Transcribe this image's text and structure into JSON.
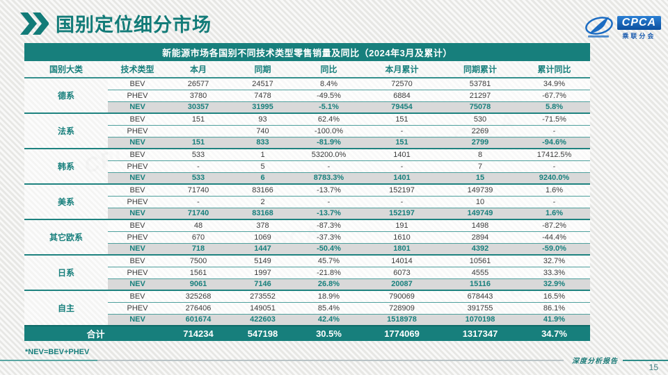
{
  "page": {
    "title": "国别定位细分市场",
    "footnote": "*NEV=BEV+PHEV",
    "footer_right": "深度分析报告",
    "page_number": "15"
  },
  "logo": {
    "text": "CPCA",
    "subtext": "乘联分会"
  },
  "watermark_text": "CPCA",
  "colors": {
    "accent_teal": "#177f7c",
    "nev_row_bg": "#d9d9d9",
    "total_row_bg": "#177f7c",
    "logo_blue": "#0c4f9e"
  },
  "table": {
    "title": "新能源市场各国别不同技术类型零售销量及同比（2024年3月及累计）",
    "columns": [
      "国别大类",
      "技术类型",
      "本月",
      "同期",
      "同比",
      "本月累计",
      "同期累计",
      "累计同比"
    ],
    "groups": [
      {
        "name": "德系",
        "rows": [
          [
            "BEV",
            "26577",
            "24517",
            "8.4%",
            "72570",
            "53781",
            "34.9%"
          ],
          [
            "PHEV",
            "3780",
            "7478",
            "-49.5%",
            "6884",
            "21297",
            "-67.7%"
          ],
          [
            "NEV",
            "30357",
            "31995",
            "-5.1%",
            "79454",
            "75078",
            "5.8%"
          ]
        ]
      },
      {
        "name": "法系",
        "rows": [
          [
            "BEV",
            "151",
            "93",
            "62.4%",
            "151",
            "530",
            "-71.5%"
          ],
          [
            "PHEV",
            "",
            "740",
            "-100.0%",
            "-",
            "2269",
            "-"
          ],
          [
            "NEV",
            "151",
            "833",
            "-81.9%",
            "151",
            "2799",
            "-94.6%"
          ]
        ]
      },
      {
        "name": "韩系",
        "rows": [
          [
            "BEV",
            "533",
            "1",
            "53200.0%",
            "1401",
            "8",
            "17412.5%"
          ],
          [
            "PHEV",
            "-",
            "5",
            "-",
            "-",
            "7",
            "-"
          ],
          [
            "NEV",
            "533",
            "6",
            "8783.3%",
            "1401",
            "15",
            "9240.0%"
          ]
        ]
      },
      {
        "name": "美系",
        "rows": [
          [
            "BEV",
            "71740",
            "83166",
            "-13.7%",
            "152197",
            "149739",
            "1.6%"
          ],
          [
            "PHEV",
            "-",
            "2",
            "-",
            "-",
            "10",
            "-"
          ],
          [
            "NEV",
            "71740",
            "83168",
            "-13.7%",
            "152197",
            "149749",
            "1.6%"
          ]
        ]
      },
      {
        "name": "其它欧系",
        "rows": [
          [
            "BEV",
            "48",
            "378",
            "-87.3%",
            "191",
            "1498",
            "-87.2%"
          ],
          [
            "PHEV",
            "670",
            "1069",
            "-37.3%",
            "1610",
            "2894",
            "-44.4%"
          ],
          [
            "NEV",
            "718",
            "1447",
            "-50.4%",
            "1801",
            "4392",
            "-59.0%"
          ]
        ]
      },
      {
        "name": "日系",
        "rows": [
          [
            "BEV",
            "7500",
            "5149",
            "45.7%",
            "14014",
            "10561",
            "32.7%"
          ],
          [
            "PHEV",
            "1561",
            "1997",
            "-21.8%",
            "6073",
            "4555",
            "33.3%"
          ],
          [
            "NEV",
            "9061",
            "7146",
            "26.8%",
            "20087",
            "15116",
            "32.9%"
          ]
        ]
      },
      {
        "name": "自主",
        "rows": [
          [
            "BEV",
            "325268",
            "273552",
            "18.9%",
            "790069",
            "678443",
            "16.5%"
          ],
          [
            "PHEV",
            "276406",
            "149051",
            "85.4%",
            "728909",
            "391755",
            "86.1%"
          ],
          [
            "NEV",
            "601674",
            "422603",
            "42.4%",
            "1518978",
            "1070198",
            "41.9%"
          ]
        ]
      }
    ],
    "total": {
      "label": "合计",
      "values": [
        "714234",
        "547198",
        "30.5%",
        "1774069",
        "1317347",
        "34.7%"
      ]
    }
  }
}
